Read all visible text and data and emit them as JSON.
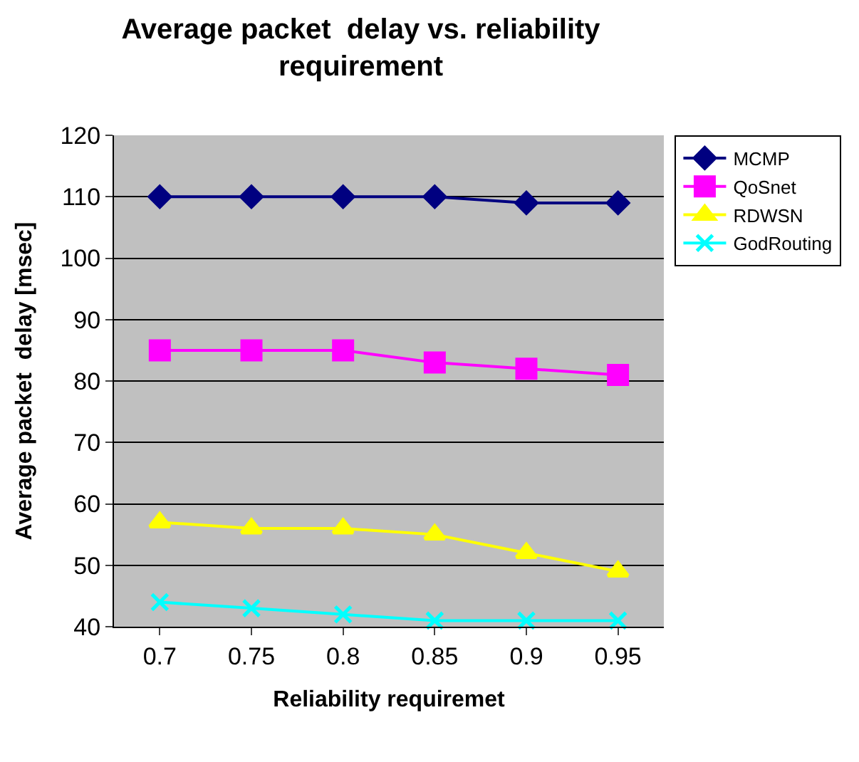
{
  "chart_data": {
    "type": "line",
    "title": "Average packet  delay vs. reliability requirement",
    "xlabel": "Reliability requiremet",
    "ylabel": "Average packet  delay [msec]",
    "categories": [
      "0.7",
      "0.75",
      "0.8",
      "0.85",
      "0.9",
      "0.95"
    ],
    "series": [
      {
        "name": "MCMP",
        "color": "#000080",
        "marker": "diamond",
        "values": [
          110,
          110,
          110,
          110,
          109,
          109
        ]
      },
      {
        "name": "QoSnet",
        "color": "#ff00ff",
        "marker": "square",
        "values": [
          85,
          85,
          85,
          83,
          82,
          81
        ]
      },
      {
        "name": "RDWSN",
        "color": "#ffff00",
        "marker": "triangle",
        "values": [
          57,
          56,
          56,
          55,
          52,
          49
        ]
      },
      {
        "name": "GodRouting",
        "color": "#00ffff",
        "marker": "cross",
        "values": [
          44,
          43,
          42,
          41,
          41,
          41
        ]
      }
    ],
    "ylim": [
      40,
      120
    ],
    "yticks": [
      40,
      50,
      60,
      70,
      80,
      90,
      100,
      110,
      120
    ],
    "grid": "y",
    "legend": "right"
  }
}
